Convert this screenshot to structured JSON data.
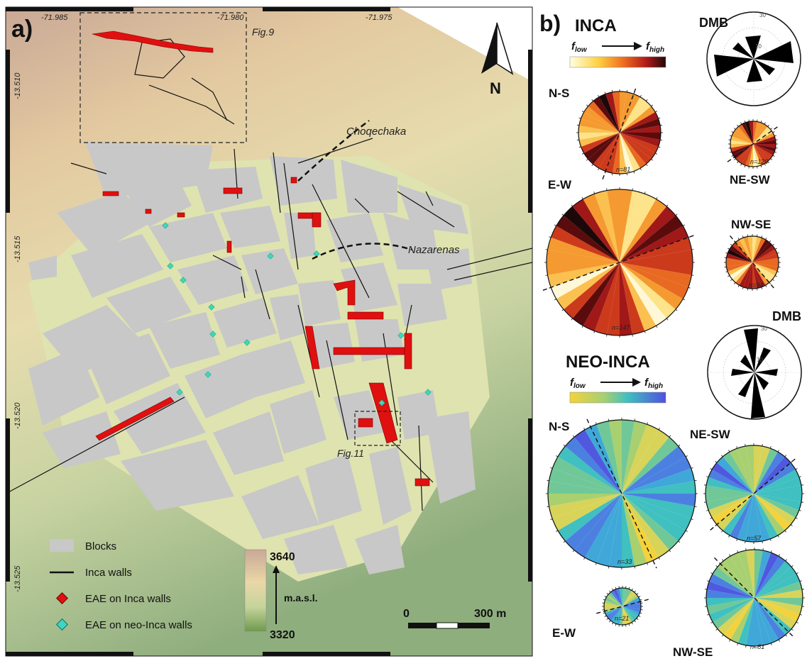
{
  "panel_a": {
    "label": "a)",
    "lon_ticks": [
      "-71.985",
      "-71.980",
      "-71.975"
    ],
    "lat_ticks": [
      "-13.510",
      "-13.515",
      "-13.520",
      "-13.525"
    ],
    "fig_boxes": [
      "Fig.9",
      "Fig.11"
    ],
    "places": [
      "Choqechaka",
      "Nazarenas"
    ],
    "north": "N",
    "legend": {
      "blocks": "Blocks",
      "inca_walls": "Inca walls",
      "eae_inca": "EAE on Inca walls",
      "eae_neo": "EAE on neo-Inca walls"
    },
    "elevation": {
      "max": "3640",
      "min": "3320",
      "unit": "m.a.s.l."
    },
    "scale": {
      "zero": "0",
      "end": "300 m"
    },
    "colors": {
      "blocks": "#c8c8c8",
      "eae_inca": "#e01010",
      "eae_neo": "#3fd6c0",
      "streets": "#dfe3b0"
    }
  },
  "panel_b": {
    "label": "b)",
    "inca": {
      "title": "INCA",
      "f_low": "f",
      "f_low_sub": "low",
      "f_high": "f",
      "f_high_sub": "high",
      "roses": [
        {
          "name": "N-S",
          "n": "n=81"
        },
        {
          "name": "E-W",
          "n": "n=147"
        },
        {
          "name": "NE-SW",
          "n": "n=129"
        },
        {
          "name": "NW-SE",
          "n": "n=94"
        }
      ],
      "dmb": {
        "title": "DMB",
        "r30": "30",
        "r10": "10"
      }
    },
    "neo": {
      "title": "NEO-INCA",
      "f_low": "f",
      "f_low_sub": "low",
      "f_high": "f",
      "f_high_sub": "high",
      "roses": [
        {
          "name": "N-S",
          "n": "n=33"
        },
        {
          "name": "NE-SW",
          "n": "n=57"
        },
        {
          "name": "E-W",
          "n": "n=21"
        },
        {
          "name": "NW-SE",
          "n": "n=81"
        }
      ],
      "dmb": {
        "title": "DMB",
        "r30": "30",
        "r10": "10"
      }
    }
  }
}
